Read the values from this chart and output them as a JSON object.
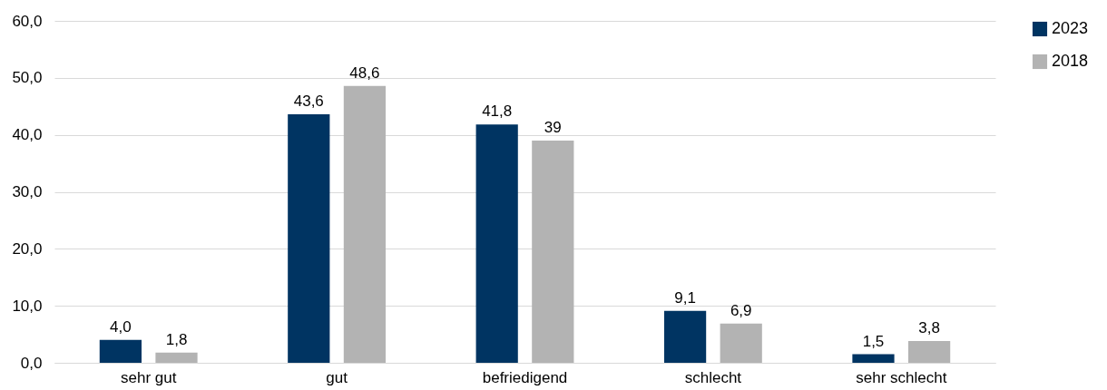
{
  "chart_data": {
    "type": "bar",
    "categories": [
      "sehr gut",
      "gut",
      "befriedigend",
      "schlecht",
      "sehr schlecht"
    ],
    "series": [
      {
        "name": "2023",
        "color": "#003462",
        "values": [
          4.0,
          43.6,
          41.8,
          9.1,
          1.5
        ],
        "value_labels": [
          "4,0",
          "43,6",
          "41,8",
          "9,1",
          "1,5"
        ]
      },
      {
        "name": "2018",
        "color": "#b3b3b3",
        "values": [
          1.8,
          48.6,
          39,
          6.9,
          3.8
        ],
        "value_labels": [
          "1,8",
          "48,6",
          "39",
          "6,9",
          "3,8"
        ]
      }
    ],
    "ylim": [
      0,
      60
    ],
    "yticks": [
      {
        "value": 0,
        "label": "0,0"
      },
      {
        "value": 10,
        "label": "10,0"
      },
      {
        "value": 20,
        "label": "20,0"
      },
      {
        "value": 30,
        "label": "30,0"
      },
      {
        "value": 40,
        "label": "40,0"
      },
      {
        "value": 50,
        "label": "50,0"
      },
      {
        "value": 60,
        "label": "60,0"
      }
    ],
    "grid": "y",
    "legend": "right"
  }
}
